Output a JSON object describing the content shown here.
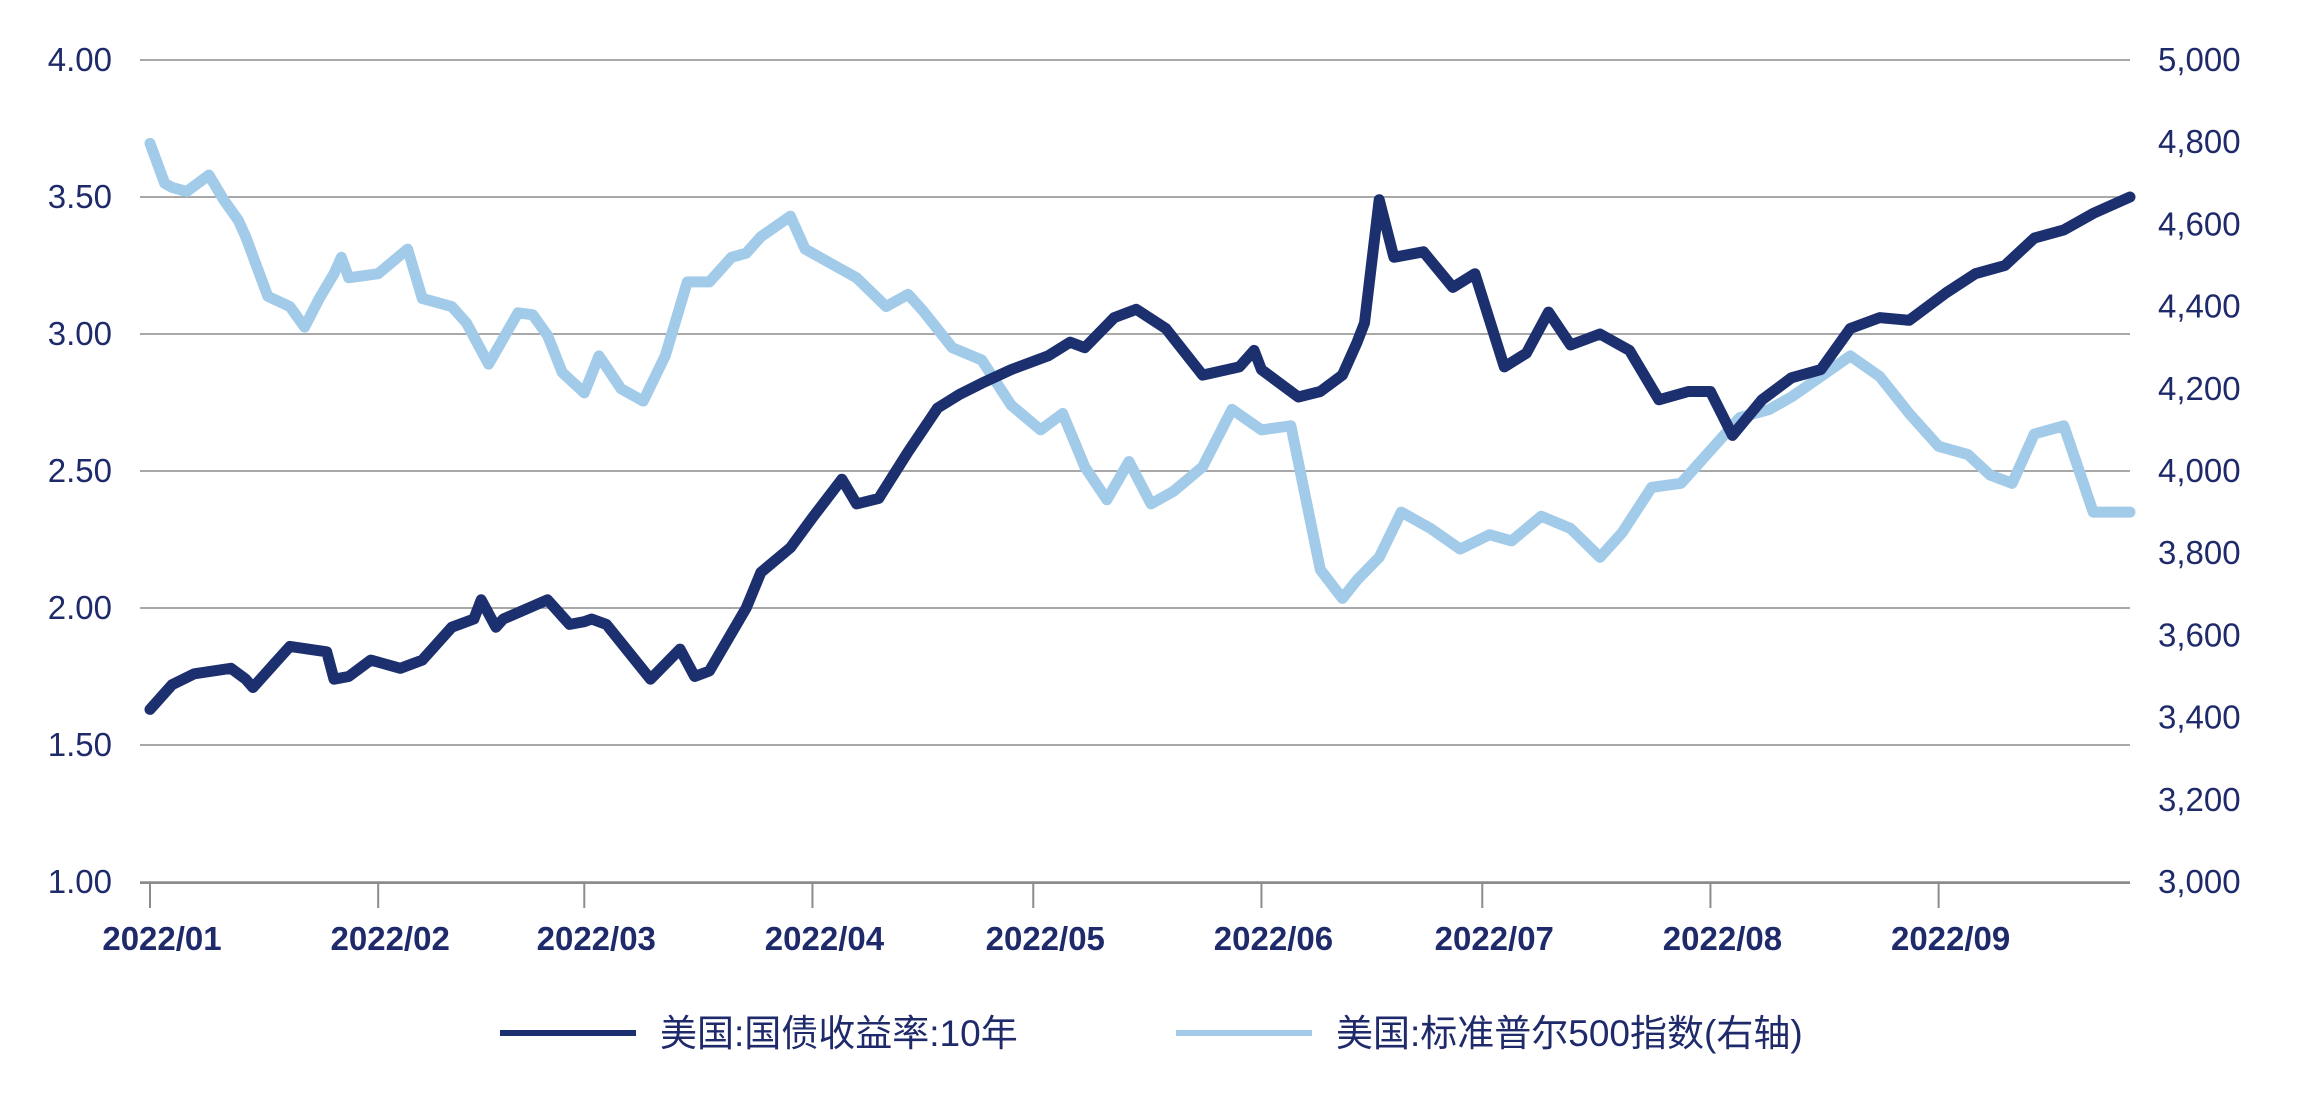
{
  "chart_data": {
    "type": "line",
    "title": "",
    "x_ticks": [
      "2022/01",
      "2022/02",
      "2022/03",
      "2022/04",
      "2022/05",
      "2022/06",
      "2022/07",
      "2022/08",
      "2022/09"
    ],
    "y_left": {
      "ticks": [
        "1.00",
        "1.50",
        "2.00",
        "2.50",
        "3.00",
        "3.50",
        "4.00"
      ],
      "range": [
        1.0,
        4.0
      ]
    },
    "y_right": {
      "ticks": [
        "3,000",
        "3,200",
        "3,400",
        "3,600",
        "3,800",
        "4,000",
        "4,200",
        "4,400",
        "4,600",
        "4,800",
        "5,000"
      ],
      "range": [
        3000,
        5000
      ]
    },
    "grid": "horizontal",
    "legend_position": "bottom",
    "colors": {
      "axis_text": "#1f2a6b",
      "grid": "#8c8c8c",
      "series1": "#1c2f6e",
      "series2": "#a2cbea"
    },
    "series": [
      {
        "name": "美国:国债收益率:10年",
        "axis": "left",
        "x": [
          "2022-01-01",
          "2022-01-04",
          "2022-01-07",
          "2022-01-12",
          "2022-01-14",
          "2022-01-15",
          "2022-01-18",
          "2022-01-20",
          "2022-01-25",
          "2022-01-26",
          "2022-01-28",
          "2022-01-31",
          "2022-02-04",
          "2022-02-07",
          "2022-02-11",
          "2022-02-14",
          "2022-02-15",
          "2022-02-17",
          "2022-02-18",
          "2022-02-24",
          "2022-02-27",
          "2022-03-01",
          "2022-03-02",
          "2022-03-04",
          "2022-03-10",
          "2022-03-14",
          "2022-03-16",
          "2022-03-18",
          "2022-03-23",
          "2022-03-25",
          "2022-03-29",
          "2022-04-01",
          "2022-04-05",
          "2022-04-07",
          "2022-04-10",
          "2022-04-14",
          "2022-04-18",
          "2022-04-21",
          "2022-04-24",
          "2022-04-28",
          "2022-05-03",
          "2022-05-06",
          "2022-05-08",
          "2022-05-12",
          "2022-05-15",
          "2022-05-19",
          "2022-05-24",
          "2022-05-29",
          "2022-05-31",
          "2022-06-01",
          "2022-06-06",
          "2022-06-09",
          "2022-06-12",
          "2022-06-14",
          "2022-06-15",
          "2022-06-17",
          "2022-06-19",
          "2022-06-23",
          "2022-06-27",
          "2022-06-30",
          "2022-07-04",
          "2022-07-07",
          "2022-07-10",
          "2022-07-13",
          "2022-07-17",
          "2022-07-21",
          "2022-07-25",
          "2022-07-29",
          "2022-08-01",
          "2022-08-04",
          "2022-08-08",
          "2022-08-12",
          "2022-08-16",
          "2022-08-20",
          "2022-08-24",
          "2022-08-28",
          "2022-09-02",
          "2022-09-06",
          "2022-09-10",
          "2022-09-14",
          "2022-09-18",
          "2022-09-22",
          "2022-09-27"
        ],
        "values": [
          1.63,
          1.72,
          1.76,
          1.78,
          1.74,
          1.71,
          1.8,
          1.86,
          1.84,
          1.74,
          1.75,
          1.81,
          1.78,
          1.81,
          1.93,
          1.96,
          2.03,
          1.93,
          1.96,
          2.03,
          1.94,
          1.95,
          1.96,
          1.94,
          1.74,
          1.85,
          1.75,
          1.77,
          2.0,
          2.13,
          2.22,
          2.33,
          2.47,
          2.38,
          2.4,
          2.57,
          2.73,
          2.78,
          2.82,
          2.87,
          2.92,
          2.97,
          2.95,
          3.06,
          3.09,
          3.02,
          2.85,
          2.88,
          2.94,
          2.87,
          2.77,
          2.79,
          2.85,
          2.97,
          3.04,
          3.49,
          3.28,
          3.3,
          3.17,
          3.22,
          2.88,
          2.93,
          3.08,
          2.96,
          3.0,
          2.94,
          2.76,
          2.79,
          2.79,
          2.63,
          2.76,
          2.84,
          2.87,
          3.02,
          3.06,
          3.05,
          3.15,
          3.22,
          3.25,
          3.35,
          3.38,
          3.44,
          3.5
        ]
      },
      {
        "name": "美国:标准普尔500指数(右轴)",
        "axis": "right",
        "x": [
          "2022-01-01",
          "2022-01-03",
          "2022-01-04",
          "2022-01-06",
          "2022-01-09",
          "2022-01-11",
          "2022-01-13",
          "2022-01-14",
          "2022-01-17",
          "2022-01-20",
          "2022-01-22",
          "2022-01-24",
          "2022-01-26",
          "2022-01-27",
          "2022-01-28",
          "2022-02-01",
          "2022-02-05",
          "2022-02-07",
          "2022-02-11",
          "2022-02-13",
          "2022-02-16",
          "2022-02-20",
          "2022-02-22",
          "2022-02-24",
          "2022-02-26",
          "2022-03-01",
          "2022-03-03",
          "2022-03-06",
          "2022-03-09",
          "2022-03-12",
          "2022-03-15",
          "2022-03-18",
          "2022-03-21",
          "2022-03-23",
          "2022-03-25",
          "2022-03-29",
          "2022-03-31",
          "2022-04-04",
          "2022-04-07",
          "2022-04-11",
          "2022-04-14",
          "2022-04-16",
          "2022-04-20",
          "2022-04-24",
          "2022-04-28",
          "2022-05-02",
          "2022-05-05",
          "2022-05-08",
          "2022-05-11",
          "2022-05-14",
          "2022-05-17",
          "2022-05-20",
          "2022-05-24",
          "2022-05-28",
          "2022-06-01",
          "2022-06-05",
          "2022-06-09",
          "2022-06-12",
          "2022-06-14",
          "2022-06-17",
          "2022-06-20",
          "2022-06-24",
          "2022-06-28",
          "2022-07-02",
          "2022-07-05",
          "2022-07-09",
          "2022-07-13",
          "2022-07-17",
          "2022-07-20",
          "2022-07-24",
          "2022-07-28",
          "2022-08-01",
          "2022-08-05",
          "2022-08-09",
          "2022-08-12",
          "2022-08-16",
          "2022-08-20",
          "2022-08-24",
          "2022-08-28",
          "2022-09-01",
          "2022-09-05",
          "2022-09-08",
          "2022-09-11",
          "2022-09-14",
          "2022-09-18",
          "2022-09-22",
          "2022-09-27"
        ],
        "values": [
          4797,
          4700,
          4690,
          4680,
          4720,
          4660,
          4610,
          4570,
          4425,
          4400,
          4350,
          4420,
          4480,
          4520,
          4470,
          4480,
          4540,
          4420,
          4400,
          4360,
          4260,
          4385,
          4380,
          4330,
          4240,
          4190,
          4280,
          4200,
          4170,
          4280,
          4460,
          4460,
          4520,
          4530,
          4570,
          4620,
          4540,
          4500,
          4470,
          4400,
          4430,
          4390,
          4300,
          4270,
          4160,
          4100,
          4140,
          4010,
          3930,
          4023,
          3920,
          3950,
          4010,
          4150,
          4100,
          4110,
          3760,
          3690,
          3735,
          3790,
          3900,
          3860,
          3810,
          3845,
          3830,
          3890,
          3860,
          3790,
          3850,
          3960,
          3970,
          4050,
          4130,
          4150,
          4180,
          4230,
          4280,
          4230,
          4140,
          4060,
          4040,
          3990,
          3970,
          4090,
          4110,
          3900,
          3900
        ]
      }
    ]
  }
}
